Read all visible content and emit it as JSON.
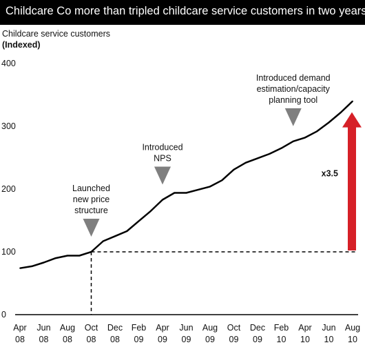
{
  "chart_data": {
    "type": "line",
    "title": "Childcare Co more than tripled childcare service customers in two years",
    "ylabel": "Childcare service customers",
    "ylabel_sub": "(Indexed)",
    "ylim": [
      0,
      400
    ],
    "yticks": [
      0,
      100,
      200,
      300,
      400
    ],
    "xticks": [
      {
        "month": "Apr",
        "year": "08"
      },
      {
        "month": "Jun",
        "year": "08"
      },
      {
        "month": "Aug",
        "year": "08"
      },
      {
        "month": "Oct",
        "year": "08"
      },
      {
        "month": "Dec",
        "year": "08"
      },
      {
        "month": "Feb",
        "year": "09"
      },
      {
        "month": "Apr",
        "year": "09"
      },
      {
        "month": "Jun",
        "year": "09"
      },
      {
        "month": "Aug",
        "year": "09"
      },
      {
        "month": "Oct",
        "year": "09"
      },
      {
        "month": "Dec",
        "year": "09"
      },
      {
        "month": "Feb",
        "year": "10"
      },
      {
        "month": "Apr",
        "year": "10"
      },
      {
        "month": "Jun",
        "year": "10"
      },
      {
        "month": "Aug",
        "year": "10"
      }
    ],
    "series": [
      {
        "color": "#000000",
        "values": [
          74,
          77,
          83,
          90,
          94,
          94,
          100,
          117,
          125,
          133,
          149,
          165,
          183,
          194,
          194,
          199,
          204,
          214,
          231,
          242,
          249,
          256,
          265,
          276,
          282,
          292,
          306,
          322,
          340
        ]
      }
    ],
    "reference_value": 100,
    "reference_x_index": 6,
    "annotations": [
      {
        "lines": [
          "Launched",
          "new price",
          "structure"
        ],
        "x_index": 6
      },
      {
        "lines": [
          "Introduced",
          "NPS"
        ],
        "x_index": 12
      },
      {
        "lines": [
          "Introduced demand",
          "estimation/capacity",
          "planning tool"
        ],
        "x_index": 23
      }
    ],
    "multiplier_label": "x3.5",
    "colors": {
      "line": "#000000",
      "arrow": "#d62027",
      "marker": "#7f7f7f",
      "title_bg": "#000000"
    },
    "grid": false,
    "legend": "none"
  }
}
